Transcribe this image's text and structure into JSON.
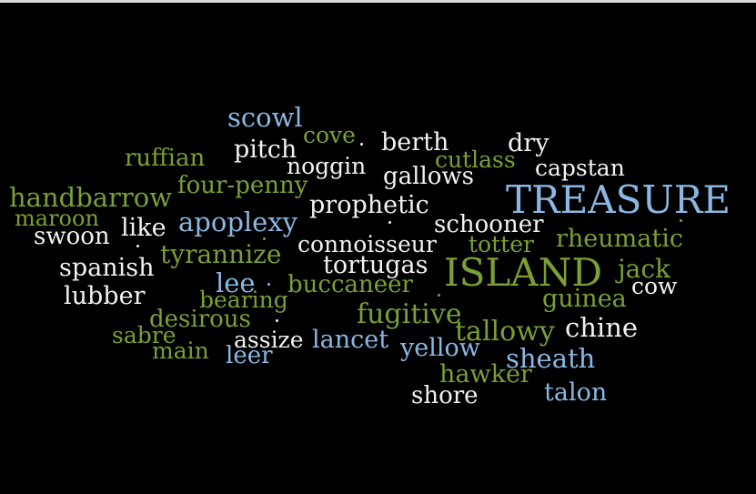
{
  "palette": {
    "background": "#000000",
    "white": "#f2f2f2",
    "blue": "#8ab8e4",
    "green": "#7aa035",
    "pale_blue": "#cfe0f2"
  },
  "words": [
    {
      "text": "scowl",
      "color": "blue"
    },
    {
      "text": "cove",
      "color": "green"
    },
    {
      "text": "pitch",
      "color": "white"
    },
    {
      "text": "berth",
      "color": "white"
    },
    {
      "text": "dry",
      "color": "white"
    },
    {
      "text": "ruffian",
      "color": "green"
    },
    {
      "text": "noggin",
      "color": "white"
    },
    {
      "text": "cutlass",
      "color": "green"
    },
    {
      "text": "capstan",
      "color": "white"
    },
    {
      "text": "gallows",
      "color": "white"
    },
    {
      "text": "four-penny",
      "color": "green"
    },
    {
      "text": "handbarrow",
      "color": "green"
    },
    {
      "text": "prophetic",
      "color": "white"
    },
    {
      "text": "TREASURE",
      "color": "blue"
    },
    {
      "text": "maroon",
      "color": "green"
    },
    {
      "text": "apoplexy",
      "color": "blue"
    },
    {
      "text": "like",
      "color": "white"
    },
    {
      "text": "schooner",
      "color": "white"
    },
    {
      "text": "swoon",
      "color": "white"
    },
    {
      "text": "connoisseur",
      "color": "white"
    },
    {
      "text": "totter",
      "color": "green"
    },
    {
      "text": "rheumatic",
      "color": "green"
    },
    {
      "text": "tyrannize",
      "color": "green"
    },
    {
      "text": "spanish",
      "color": "white"
    },
    {
      "text": "tortugas",
      "color": "white"
    },
    {
      "text": "ISLAND",
      "color": "green"
    },
    {
      "text": "jack",
      "color": "green"
    },
    {
      "text": "lee",
      "color": "blue"
    },
    {
      "text": "buccaneer",
      "color": "green"
    },
    {
      "text": "cow",
      "color": "white"
    },
    {
      "text": "lubber",
      "color": "white"
    },
    {
      "text": "bearing",
      "color": "green"
    },
    {
      "text": "guinea",
      "color": "green"
    },
    {
      "text": "desirous",
      "color": "green"
    },
    {
      "text": "fugitive",
      "color": "green"
    },
    {
      "text": "chine",
      "color": "white"
    },
    {
      "text": "tallowy",
      "color": "green"
    },
    {
      "text": "sabre",
      "color": "green"
    },
    {
      "text": "assize",
      "color": "white"
    },
    {
      "text": "lancet",
      "color": "blue"
    },
    {
      "text": "yellow",
      "color": "blue"
    },
    {
      "text": "main",
      "color": "green"
    },
    {
      "text": "leer",
      "color": "blue"
    },
    {
      "text": "sheath",
      "color": "blue"
    },
    {
      "text": "hawker",
      "color": "green"
    },
    {
      "text": "talon",
      "color": "blue"
    },
    {
      "text": "shore",
      "color": "white"
    }
  ]
}
